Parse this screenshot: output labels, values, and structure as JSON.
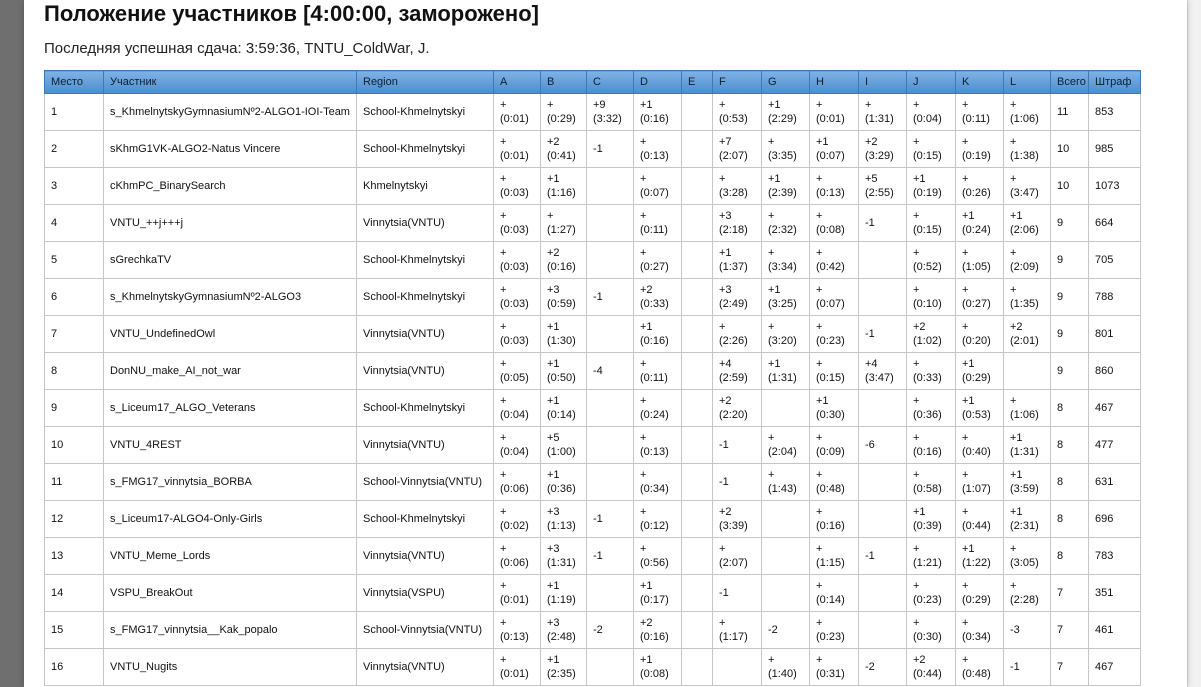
{
  "title": "Положение участников [4:00:00, заморожено]",
  "last_submission": "Последняя успешная сдача: 3:59:36, TNTU_ColdWar, J.",
  "headers": {
    "place": "Место",
    "team": "Участник",
    "region": "Region",
    "problems": [
      "A",
      "B",
      "C",
      "D",
      "E",
      "F",
      "G",
      "H",
      "I",
      "J",
      "K",
      "L"
    ],
    "solved": "Всего",
    "penalty": "Штраф"
  },
  "rows": [
    {
      "place": "1",
      "team": "s_KhmelnytskyGymnasiumNº2-ALGO1-IOI-Team",
      "region": "School-Khmelnytskyi",
      "cells": [
        [
          "+",
          "(0:01)"
        ],
        [
          "+",
          "(0:29)"
        ],
        [
          "+9",
          "(3:32)"
        ],
        [
          "+1",
          "(0:16)"
        ],
        [
          "",
          ""
        ],
        [
          "+",
          "(0:53)"
        ],
        [
          "+1",
          "(2:29)"
        ],
        [
          "+",
          "(0:01)"
        ],
        [
          "+",
          "(1:31)"
        ],
        [
          "+",
          "(0:04)"
        ],
        [
          "+",
          "(0:11)"
        ],
        [
          "+",
          "(1:06)"
        ]
      ],
      "solved": "11",
      "penalty": "853"
    },
    {
      "place": "2",
      "team": "sKhmG1VK-ALGO2-Natus Vincere",
      "region": "School-Khmelnytskyi",
      "cells": [
        [
          "+",
          "(0:01)"
        ],
        [
          "+2",
          "(0:41)"
        ],
        [
          "-1",
          ""
        ],
        [
          "+",
          "(0:13)"
        ],
        [
          "",
          ""
        ],
        [
          "+7",
          "(2:07)"
        ],
        [
          "+",
          "(3:35)"
        ],
        [
          "+1",
          "(0:07)"
        ],
        [
          "+2",
          "(3:29)"
        ],
        [
          "+",
          "(0:15)"
        ],
        [
          "+",
          "(0:19)"
        ],
        [
          "+",
          "(1:38)"
        ]
      ],
      "solved": "10",
      "penalty": "985"
    },
    {
      "place": "3",
      "team": "cKhmPC_BinarySearch",
      "region": "Khmelnytskyi",
      "cells": [
        [
          "+",
          "(0:03)"
        ],
        [
          "+1",
          "(1:16)"
        ],
        [
          "",
          ""
        ],
        [
          "+",
          "(0:07)"
        ],
        [
          "",
          ""
        ],
        [
          "+",
          "(3:28)"
        ],
        [
          "+1",
          "(2:39)"
        ],
        [
          "+",
          "(0:13)"
        ],
        [
          "+5",
          "(2:55)"
        ],
        [
          "+1",
          "(0:19)"
        ],
        [
          "+",
          "(0:26)"
        ],
        [
          "+",
          "(3:47)"
        ]
      ],
      "solved": "10",
      "penalty": "1073"
    },
    {
      "place": "4",
      "team": "VNTU_++j+++j",
      "region": "Vinnytsia(VNTU)",
      "cells": [
        [
          "+",
          "(0:03)"
        ],
        [
          "+",
          "(1:27)"
        ],
        [
          "",
          ""
        ],
        [
          "+",
          "(0:11)"
        ],
        [
          "",
          ""
        ],
        [
          "+3",
          "(2:18)"
        ],
        [
          "+",
          "(2:32)"
        ],
        [
          "+",
          "(0:08)"
        ],
        [
          "-1",
          ""
        ],
        [
          "+",
          "(0:15)"
        ],
        [
          "+1",
          "(0:24)"
        ],
        [
          "+1",
          "(2:06)"
        ]
      ],
      "solved": "9",
      "penalty": "664"
    },
    {
      "place": "5",
      "team": "sGrechkaTV",
      "region": "School-Khmelnytskyi",
      "cells": [
        [
          "+",
          "(0:03)"
        ],
        [
          "+2",
          "(0:16)"
        ],
        [
          "",
          ""
        ],
        [
          "+",
          "(0:27)"
        ],
        [
          "",
          ""
        ],
        [
          "+1",
          "(1:37)"
        ],
        [
          "+",
          "(3:34)"
        ],
        [
          "+",
          "(0:42)"
        ],
        [
          "",
          ""
        ],
        [
          "+",
          "(0:52)"
        ],
        [
          "+",
          "(1:05)"
        ],
        [
          "+",
          "(2:09)"
        ]
      ],
      "solved": "9",
      "penalty": "705"
    },
    {
      "place": "6",
      "team": "s_KhmelnytskyGymnasiumNº2-ALGO3",
      "region": "School-Khmelnytskyi",
      "cells": [
        [
          "+",
          "(0:03)"
        ],
        [
          "+3",
          "(0:59)"
        ],
        [
          "-1",
          ""
        ],
        [
          "+2",
          "(0:33)"
        ],
        [
          "",
          ""
        ],
        [
          "+3",
          "(2:49)"
        ],
        [
          "+1",
          "(3:25)"
        ],
        [
          "+",
          "(0:07)"
        ],
        [
          "",
          ""
        ],
        [
          "+",
          "(0:10)"
        ],
        [
          "+",
          "(0:27)"
        ],
        [
          "+",
          "(1:35)"
        ]
      ],
      "solved": "9",
      "penalty": "788"
    },
    {
      "place": "7",
      "team": "VNTU_UndefinedOwl",
      "region": "Vinnytsia(VNTU)",
      "cells": [
        [
          "+",
          "(0:03)"
        ],
        [
          "+1",
          "(1:30)"
        ],
        [
          "",
          ""
        ],
        [
          "+1",
          "(0:16)"
        ],
        [
          "",
          ""
        ],
        [
          "+",
          "(2:26)"
        ],
        [
          "+",
          "(3:20)"
        ],
        [
          "+",
          "(0:23)"
        ],
        [
          "-1",
          ""
        ],
        [
          "+2",
          "(1:02)"
        ],
        [
          "+",
          "(0:20)"
        ],
        [
          "+2",
          "(2:01)"
        ]
      ],
      "solved": "9",
      "penalty": "801"
    },
    {
      "place": "8",
      "team": "DonNU_make_AI_not_war",
      "region": "Vinnytsia(VNTU)",
      "cells": [
        [
          "+",
          "(0:05)"
        ],
        [
          "+1",
          "(0:50)"
        ],
        [
          "-4",
          ""
        ],
        [
          "+",
          "(0:11)"
        ],
        [
          "",
          ""
        ],
        [
          "+4",
          "(2:59)"
        ],
        [
          "+1",
          "(1:31)"
        ],
        [
          "+",
          "(0:15)"
        ],
        [
          "+4",
          "(3:47)"
        ],
        [
          "+",
          "(0:33)"
        ],
        [
          "+1",
          "(0:29)"
        ],
        [
          "",
          ""
        ]
      ],
      "solved": "9",
      "penalty": "860"
    },
    {
      "place": "9",
      "team": "s_Liceum17_ALGO_Veterans",
      "region": "School-Khmelnytskyi",
      "cells": [
        [
          "+",
          "(0:04)"
        ],
        [
          "+1",
          "(0:14)"
        ],
        [
          "",
          ""
        ],
        [
          "+",
          "(0:24)"
        ],
        [
          "",
          ""
        ],
        [
          "+2",
          "(2:20)"
        ],
        [
          "",
          ""
        ],
        [
          "+1",
          "(0:30)"
        ],
        [
          "",
          ""
        ],
        [
          "+",
          "(0:36)"
        ],
        [
          "+1",
          "(0:53)"
        ],
        [
          "+",
          "(1:06)"
        ]
      ],
      "solved": "8",
      "penalty": "467"
    },
    {
      "place": "10",
      "team": "VNTU_4REST",
      "region": "Vinnytsia(VNTU)",
      "cells": [
        [
          "+",
          "(0:04)"
        ],
        [
          "+5",
          "(1:00)"
        ],
        [
          "",
          ""
        ],
        [
          "+",
          "(0:13)"
        ],
        [
          "",
          ""
        ],
        [
          "-1",
          ""
        ],
        [
          "+",
          "(2:04)"
        ],
        [
          "+",
          "(0:09)"
        ],
        [
          "-6",
          ""
        ],
        [
          "+",
          "(0:16)"
        ],
        [
          "+",
          "(0:40)"
        ],
        [
          "+1",
          "(1:31)"
        ]
      ],
      "solved": "8",
      "penalty": "477"
    },
    {
      "place": "11",
      "team": "s_FMG17_vinnytsia_BORBA",
      "region": "School-Vinnytsia(VNTU)",
      "cells": [
        [
          "+",
          "(0:06)"
        ],
        [
          "+1",
          "(0:36)"
        ],
        [
          "",
          ""
        ],
        [
          "+",
          "(0:34)"
        ],
        [
          "",
          ""
        ],
        [
          "-1",
          ""
        ],
        [
          "+",
          "(1:43)"
        ],
        [
          "+",
          "(0:48)"
        ],
        [
          "",
          ""
        ],
        [
          "+",
          "(0:58)"
        ],
        [
          "+",
          "(1:07)"
        ],
        [
          "+1",
          "(3:59)"
        ]
      ],
      "solved": "8",
      "penalty": "631"
    },
    {
      "place": "12",
      "team": "s_Liceum17-ALGO4-Only-Girls",
      "region": "School-Khmelnytskyi",
      "cells": [
        [
          "+",
          "(0:02)"
        ],
        [
          "+3",
          "(1:13)"
        ],
        [
          "-1",
          ""
        ],
        [
          "+",
          "(0:12)"
        ],
        [
          "",
          ""
        ],
        [
          "+2",
          "(3:39)"
        ],
        [
          "",
          ""
        ],
        [
          "+",
          "(0:16)"
        ],
        [
          "",
          ""
        ],
        [
          "+1",
          "(0:39)"
        ],
        [
          "+",
          "(0:44)"
        ],
        [
          "+1",
          "(2:31)"
        ]
      ],
      "solved": "8",
      "penalty": "696"
    },
    {
      "place": "13",
      "team": "VNTU_Meme_Lords",
      "region": "Vinnytsia(VNTU)",
      "cells": [
        [
          "+",
          "(0:06)"
        ],
        [
          "+3",
          "(1:31)"
        ],
        [
          "-1",
          ""
        ],
        [
          "+",
          "(0:56)"
        ],
        [
          "",
          ""
        ],
        [
          "+",
          "(2:07)"
        ],
        [
          "",
          ""
        ],
        [
          "+",
          "(1:15)"
        ],
        [
          "-1",
          ""
        ],
        [
          "+",
          "(1:21)"
        ],
        [
          "+1",
          "(1:22)"
        ],
        [
          "+",
          "(3:05)"
        ]
      ],
      "solved": "8",
      "penalty": "783"
    },
    {
      "place": "14",
      "team": "VSPU_BreakOut",
      "region": "Vinnytsia(VSPU)",
      "cells": [
        [
          "+",
          "(0:01)"
        ],
        [
          "+1",
          "(1:19)"
        ],
        [
          "",
          ""
        ],
        [
          "+1",
          "(0:17)"
        ],
        [
          "",
          ""
        ],
        [
          "-1",
          ""
        ],
        [
          "",
          ""
        ],
        [
          "+",
          "(0:14)"
        ],
        [
          "",
          ""
        ],
        [
          "+",
          "(0:23)"
        ],
        [
          "+",
          "(0:29)"
        ],
        [
          "+",
          "(2:28)"
        ]
      ],
      "solved": "7",
      "penalty": "351"
    },
    {
      "place": "15",
      "team": "s_FMG17_vinnytsia__Kak_popalo",
      "region": "School-Vinnytsia(VNTU)",
      "cells": [
        [
          "+",
          "(0:13)"
        ],
        [
          "+3",
          "(2:48)"
        ],
        [
          "-2",
          ""
        ],
        [
          "+2",
          "(0:16)"
        ],
        [
          "",
          ""
        ],
        [
          "+",
          "(1:17)"
        ],
        [
          "-2",
          ""
        ],
        [
          "+",
          "(0:23)"
        ],
        [
          "",
          ""
        ],
        [
          "+",
          "(0:30)"
        ],
        [
          "+",
          "(0:34)"
        ],
        [
          "-3",
          ""
        ]
      ],
      "solved": "7",
      "penalty": "461"
    },
    {
      "place": "16",
      "team": "VNTU_Nugits",
      "region": "Vinnytsia(VNTU)",
      "cells": [
        [
          "+",
          "(0:01)"
        ],
        [
          "+1",
          "(2:35)"
        ],
        [
          "",
          ""
        ],
        [
          "+1",
          "(0:08)"
        ],
        [
          "",
          ""
        ],
        [
          "",
          ""
        ],
        [
          "+",
          "(1:40)"
        ],
        [
          "+",
          "(0:31)"
        ],
        [
          "-2",
          ""
        ],
        [
          "+2",
          "(0:44)"
        ],
        [
          "+",
          "(0:48)"
        ],
        [
          "-1",
          ""
        ]
      ],
      "solved": "7",
      "penalty": "467"
    }
  ]
}
